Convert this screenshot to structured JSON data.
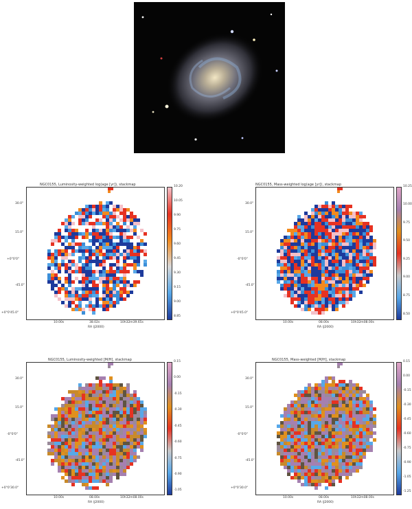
{
  "panels": [
    {
      "title": "NGC0155, Luminosity-weighted log(age [yr]), stackmap",
      "cbar_ticks": [
        "10.20",
        "10.05",
        "9.90",
        "9.75",
        "9.60",
        "9.45",
        "9.30",
        "9.15",
        "9.00",
        "8.85"
      ],
      "yticks": [
        "30.0\"",
        "15.0\"",
        "+0°0'0\"",
        "-45.0\"",
        "+0°0'45.0\""
      ],
      "xticks": [
        "10.00s",
        "38.02s",
        "10h32m39.65s"
      ],
      "xlabel": "RA (J2000)",
      "colormap": "age",
      "mask": "sparse"
    },
    {
      "title": "NGC0155, Mass-weighted log(age [yr]), stackmap",
      "cbar_ticks": [
        "10.25",
        "10.00",
        "9.75",
        "9.50",
        "9.25",
        "9.00",
        "8.75",
        "8.50"
      ],
      "yticks": [
        "30.0\"",
        "15.0\"",
        "-0°0'0\"",
        "-45.0\"",
        "+0°0'45.0\""
      ],
      "xticks": [
        "10.00s",
        "08.00s",
        "10h32m08.00s"
      ],
      "xlabel": "RA (J2000)",
      "colormap": "age",
      "mask": "dense"
    },
    {
      "title": "NGC0155, Luminosity-weighted [M/H], stackmap",
      "cbar_ticks": [
        "0.15",
        "0.00",
        "-0.15",
        "-0.30",
        "-0.45",
        "-0.60",
        "-0.75",
        "-0.90",
        "-1.05"
      ],
      "yticks": [
        "30.0\"",
        "15.0\"",
        "-0°0'0\"",
        "-45.0\"",
        "+0°0'30.0\""
      ],
      "xticks": [
        "10.00s",
        "08.00s",
        "10h32m08.00s"
      ],
      "xlabel": "RA (J2000)",
      "colormap": "metal",
      "mask": "dense"
    },
    {
      "title": "NGC0155, Mass-weighted [M/H], stackmap",
      "cbar_ticks": [
        "0.15",
        "0.00",
        "-0.15",
        "-0.30",
        "-0.45",
        "-0.60",
        "-0.75",
        "-0.90",
        "-1.05",
        "-1.25"
      ],
      "yticks": [
        "30.0\"",
        "15.0\"",
        "-0°0'0\"",
        "-45.0\"",
        "+0°0'30.0\""
      ],
      "xticks": [
        "10.00s",
        "08.00s",
        "10h32m08.00s"
      ],
      "xlabel": "RA (J2000)",
      "colormap": "metal",
      "mask": "dense"
    }
  ]
}
